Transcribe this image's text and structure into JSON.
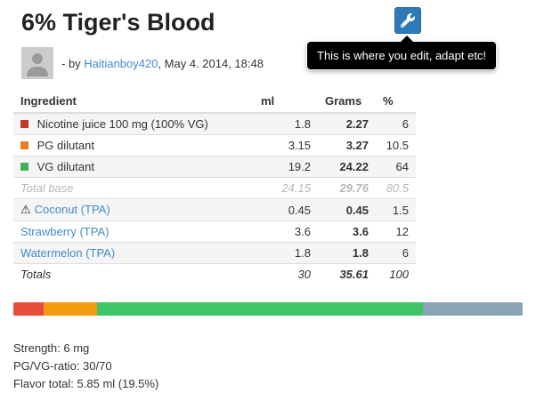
{
  "page": {
    "title": "6% Tiger's Blood"
  },
  "toolbar": {
    "edit_button_icon": "wrench-icon",
    "tooltip": "This is where you edit, adapt etc!"
  },
  "byline": {
    "prefix": "- by ",
    "author": "Haitianboy420",
    "suffix": ", May 4. 2014, 18:48"
  },
  "icons": {
    "warning_glyph": "⚠"
  },
  "table": {
    "headers": {
      "ingredient": "Ingredient",
      "ml": "ml",
      "grams": "Grams",
      "percent": "%"
    },
    "rows": [
      {
        "name": "Nicotine juice 100 mg (100% VG)",
        "marker": "#c0392b",
        "ml": "1.8",
        "grams": "2.27",
        "percent": "6"
      },
      {
        "name": "PG dilutant",
        "marker": "#e67e22",
        "ml": "3.15",
        "grams": "3.27",
        "percent": "10.5"
      },
      {
        "name": "VG dilutant",
        "marker": "#44b05b",
        "ml": "19.2",
        "grams": "24.22",
        "percent": "64"
      },
      {
        "name": "Total base",
        "ml": "24.15",
        "grams": "29.76",
        "percent": "80.5"
      },
      {
        "name": "Coconut (TPA)",
        "warning": true,
        "ml": "0.45",
        "grams": "0.45",
        "percent": "1.5"
      },
      {
        "name": "Strawberry (TPA)",
        "ml": "3.6",
        "grams": "3.6",
        "percent": "12"
      },
      {
        "name": "Watermelon (TPA)",
        "ml": "1.8",
        "grams": "1.8",
        "percent": "6"
      },
      {
        "name": "Totals",
        "ml": "30",
        "grams": "35.61",
        "percent": "100"
      }
    ]
  },
  "composition_bar": {
    "segments": [
      {
        "label": "nicotine",
        "percent": 6,
        "color": "#e74c3c"
      },
      {
        "label": "pg",
        "percent": 10.5,
        "color": "#f39c12"
      },
      {
        "label": "vg",
        "percent": 64,
        "color": "#3fc567"
      },
      {
        "label": "flavors",
        "percent": 19.5,
        "color": "#8ba4b5"
      }
    ]
  },
  "summary": {
    "strength": "Strength: 6 mg",
    "pg_vg_ratio": "PG/VG-ratio: 30/70",
    "flavor_total": "Flavor total: 5.85 ml (19.5%)"
  },
  "colors": {
    "link": "#428bca",
    "button_bg": "#2e7ab8",
    "tooltip_bg": "#000000",
    "stripe": "#f5f5f5",
    "muted_row_text": "#b8b8b8"
  }
}
